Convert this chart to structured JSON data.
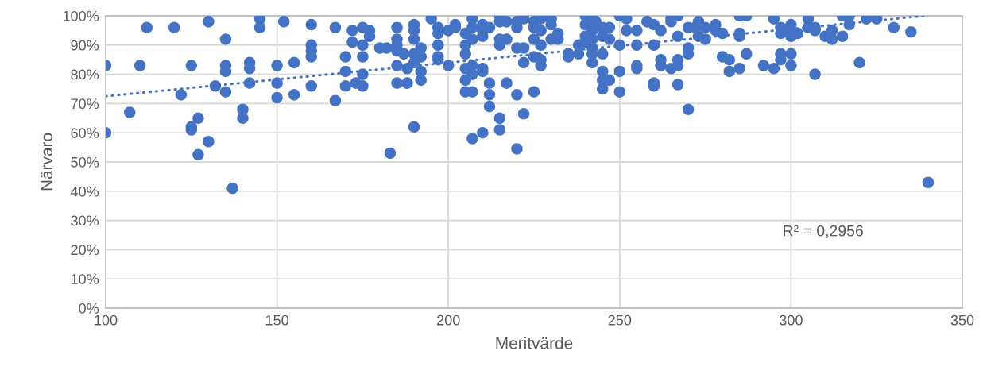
{
  "chart_data": {
    "type": "scatter",
    "xlabel": "Meritvärde",
    "ylabel": "Närvaro",
    "xlim": [
      100,
      350
    ],
    "xticks": [
      100,
      150,
      200,
      250,
      300,
      350
    ],
    "ylim": [
      0,
      100
    ],
    "yticks": [
      {
        "value": 0,
        "label": "0%"
      },
      {
        "value": 10,
        "label": "10%"
      },
      {
        "value": 20,
        "label": "20%"
      },
      {
        "value": 30,
        "label": "30%"
      },
      {
        "value": 40,
        "label": "40%"
      },
      {
        "value": 50,
        "label": "50%"
      },
      {
        "value": 60,
        "label": "60%"
      },
      {
        "value": 70,
        "label": "70%"
      },
      {
        "value": 80,
        "label": "80%"
      },
      {
        "value": 90,
        "label": "90%"
      },
      {
        "value": 100,
        "label": "100%"
      }
    ],
    "grid": true,
    "legend": false,
    "annotations": [
      "R² = 0,2956"
    ],
    "series": [
      {
        "color": "#4472c4",
        "marker": "circle",
        "x": [
          100,
          100,
          107,
          110,
          112,
          120,
          122,
          125,
          125,
          125,
          127,
          127,
          130,
          130,
          132,
          135,
          135,
          135,
          135,
          137,
          140,
          140,
          142,
          142,
          142,
          145,
          145,
          150,
          150,
          150,
          152,
          155,
          155,
          160,
          160,
          160,
          160,
          160,
          167,
          167,
          170,
          170,
          170,
          172,
          172,
          173,
          175,
          175,
          175,
          175,
          175,
          177,
          177,
          180,
          182,
          183,
          185,
          185,
          185,
          185,
          185,
          185,
          187,
          188,
          188,
          190,
          190,
          190,
          190,
          190,
          190,
          192,
          192,
          192,
          192,
          195,
          197,
          197,
          197,
          197,
          197,
          200,
          200,
          202,
          202,
          205,
          205,
          205,
          205,
          205,
          205,
          207,
          207,
          207,
          207,
          207,
          207,
          207,
          210,
          210,
          210,
          210,
          210,
          210,
          212,
          212,
          212,
          212,
          215,
          215,
          215,
          215,
          215,
          215,
          217,
          217,
          217,
          220,
          220,
          220,
          220,
          220,
          222,
          222,
          222,
          222,
          225,
          225,
          225,
          225,
          225,
          227,
          227,
          227,
          227,
          227,
          230,
          230,
          230,
          232,
          232,
          235,
          235,
          238,
          238,
          240,
          240,
          240,
          240,
          242,
          242,
          242,
          242,
          242,
          242,
          243,
          245,
          245,
          245,
          245,
          245,
          245,
          247,
          247,
          247,
          250,
          250,
          250,
          250,
          252,
          252,
          255,
          255,
          255,
          255,
          258,
          260,
          260,
          260,
          260,
          262,
          262,
          262,
          265,
          265,
          265,
          267,
          267,
          267,
          267,
          267,
          270,
          270,
          270,
          270,
          272,
          273,
          273,
          275,
          275,
          278,
          278,
          280,
          280,
          282,
          282,
          285,
          285,
          285,
          285,
          287,
          287,
          292,
          295,
          295,
          297,
          297,
          297,
          297,
          300,
          300,
          300,
          300,
          300,
          302,
          305,
          305,
          307,
          307,
          307,
          310,
          312,
          312,
          315,
          315,
          317,
          317,
          320,
          322,
          325,
          330,
          335,
          340
        ],
        "values": [
          83,
          60,
          67,
          83,
          96,
          96,
          73,
          83,
          62,
          61,
          65,
          52.5,
          98,
          57,
          76,
          92,
          83,
          81,
          74,
          41,
          68,
          65,
          84,
          82,
          77,
          99,
          96,
          83,
          77,
          72,
          98,
          84,
          73,
          97,
          90,
          88,
          86,
          76,
          96,
          71,
          86,
          81,
          76,
          95,
          91,
          77,
          96,
          90,
          86,
          80,
          76,
          95,
          93,
          89,
          89,
          53,
          96,
          92,
          90,
          88,
          83,
          77,
          87,
          82,
          77,
          97,
          95,
          92,
          87,
          84,
          62,
          89,
          86,
          81,
          78,
          99,
          96,
          94,
          90,
          86,
          85,
          95,
          83,
          97,
          96,
          94,
          90,
          87,
          82,
          78,
          74,
          99,
          96,
          92,
          83,
          80,
          74,
          58,
          97,
          95,
          93,
          82,
          81,
          60,
          96,
          77,
          73,
          69,
          100,
          98,
          92,
          90,
          65,
          61,
          98,
          92,
          77,
          98,
          96,
          89,
          73,
          54.5,
          99,
          89,
          84,
          66.5,
          98,
          96,
          92,
          86,
          74,
          99,
          95,
          90,
          85,
          83,
          99,
          97,
          92,
          94,
          92,
          87,
          86,
          90,
          87,
          100,
          97,
          93,
          91,
          100,
          95,
          92,
          89,
          87,
          84,
          98,
          96,
          93,
          87,
          81,
          78,
          75,
          96,
          92,
          78,
          100,
          90,
          81,
          74,
          99,
          95,
          95,
          90,
          83,
          82,
          98,
          97,
          90,
          77,
          76,
          95,
          85,
          83,
          99,
          98,
          82,
          100,
          93,
          85,
          83,
          76.5,
          96,
          89,
          87,
          68,
          96,
          98,
          93,
          96,
          92,
          97,
          95,
          94,
          86,
          85,
          81,
          100,
          94,
          93,
          82,
          100,
          87,
          83,
          99,
          82,
          96,
          94,
          87,
          85,
          97,
          95,
          93,
          87,
          83,
          94,
          99,
          96,
          96,
          95,
          80,
          93,
          95,
          92,
          100,
          93,
          100,
          97,
          84,
          99,
          99,
          96,
          94.5,
          43
        ]
      },
      {
        "type": "line",
        "color": "#4472c4",
        "marker": "none",
        "line_style": "dotted",
        "x": [
          100,
          339
        ],
        "values": [
          72.5,
          100
        ]
      }
    ]
  }
}
